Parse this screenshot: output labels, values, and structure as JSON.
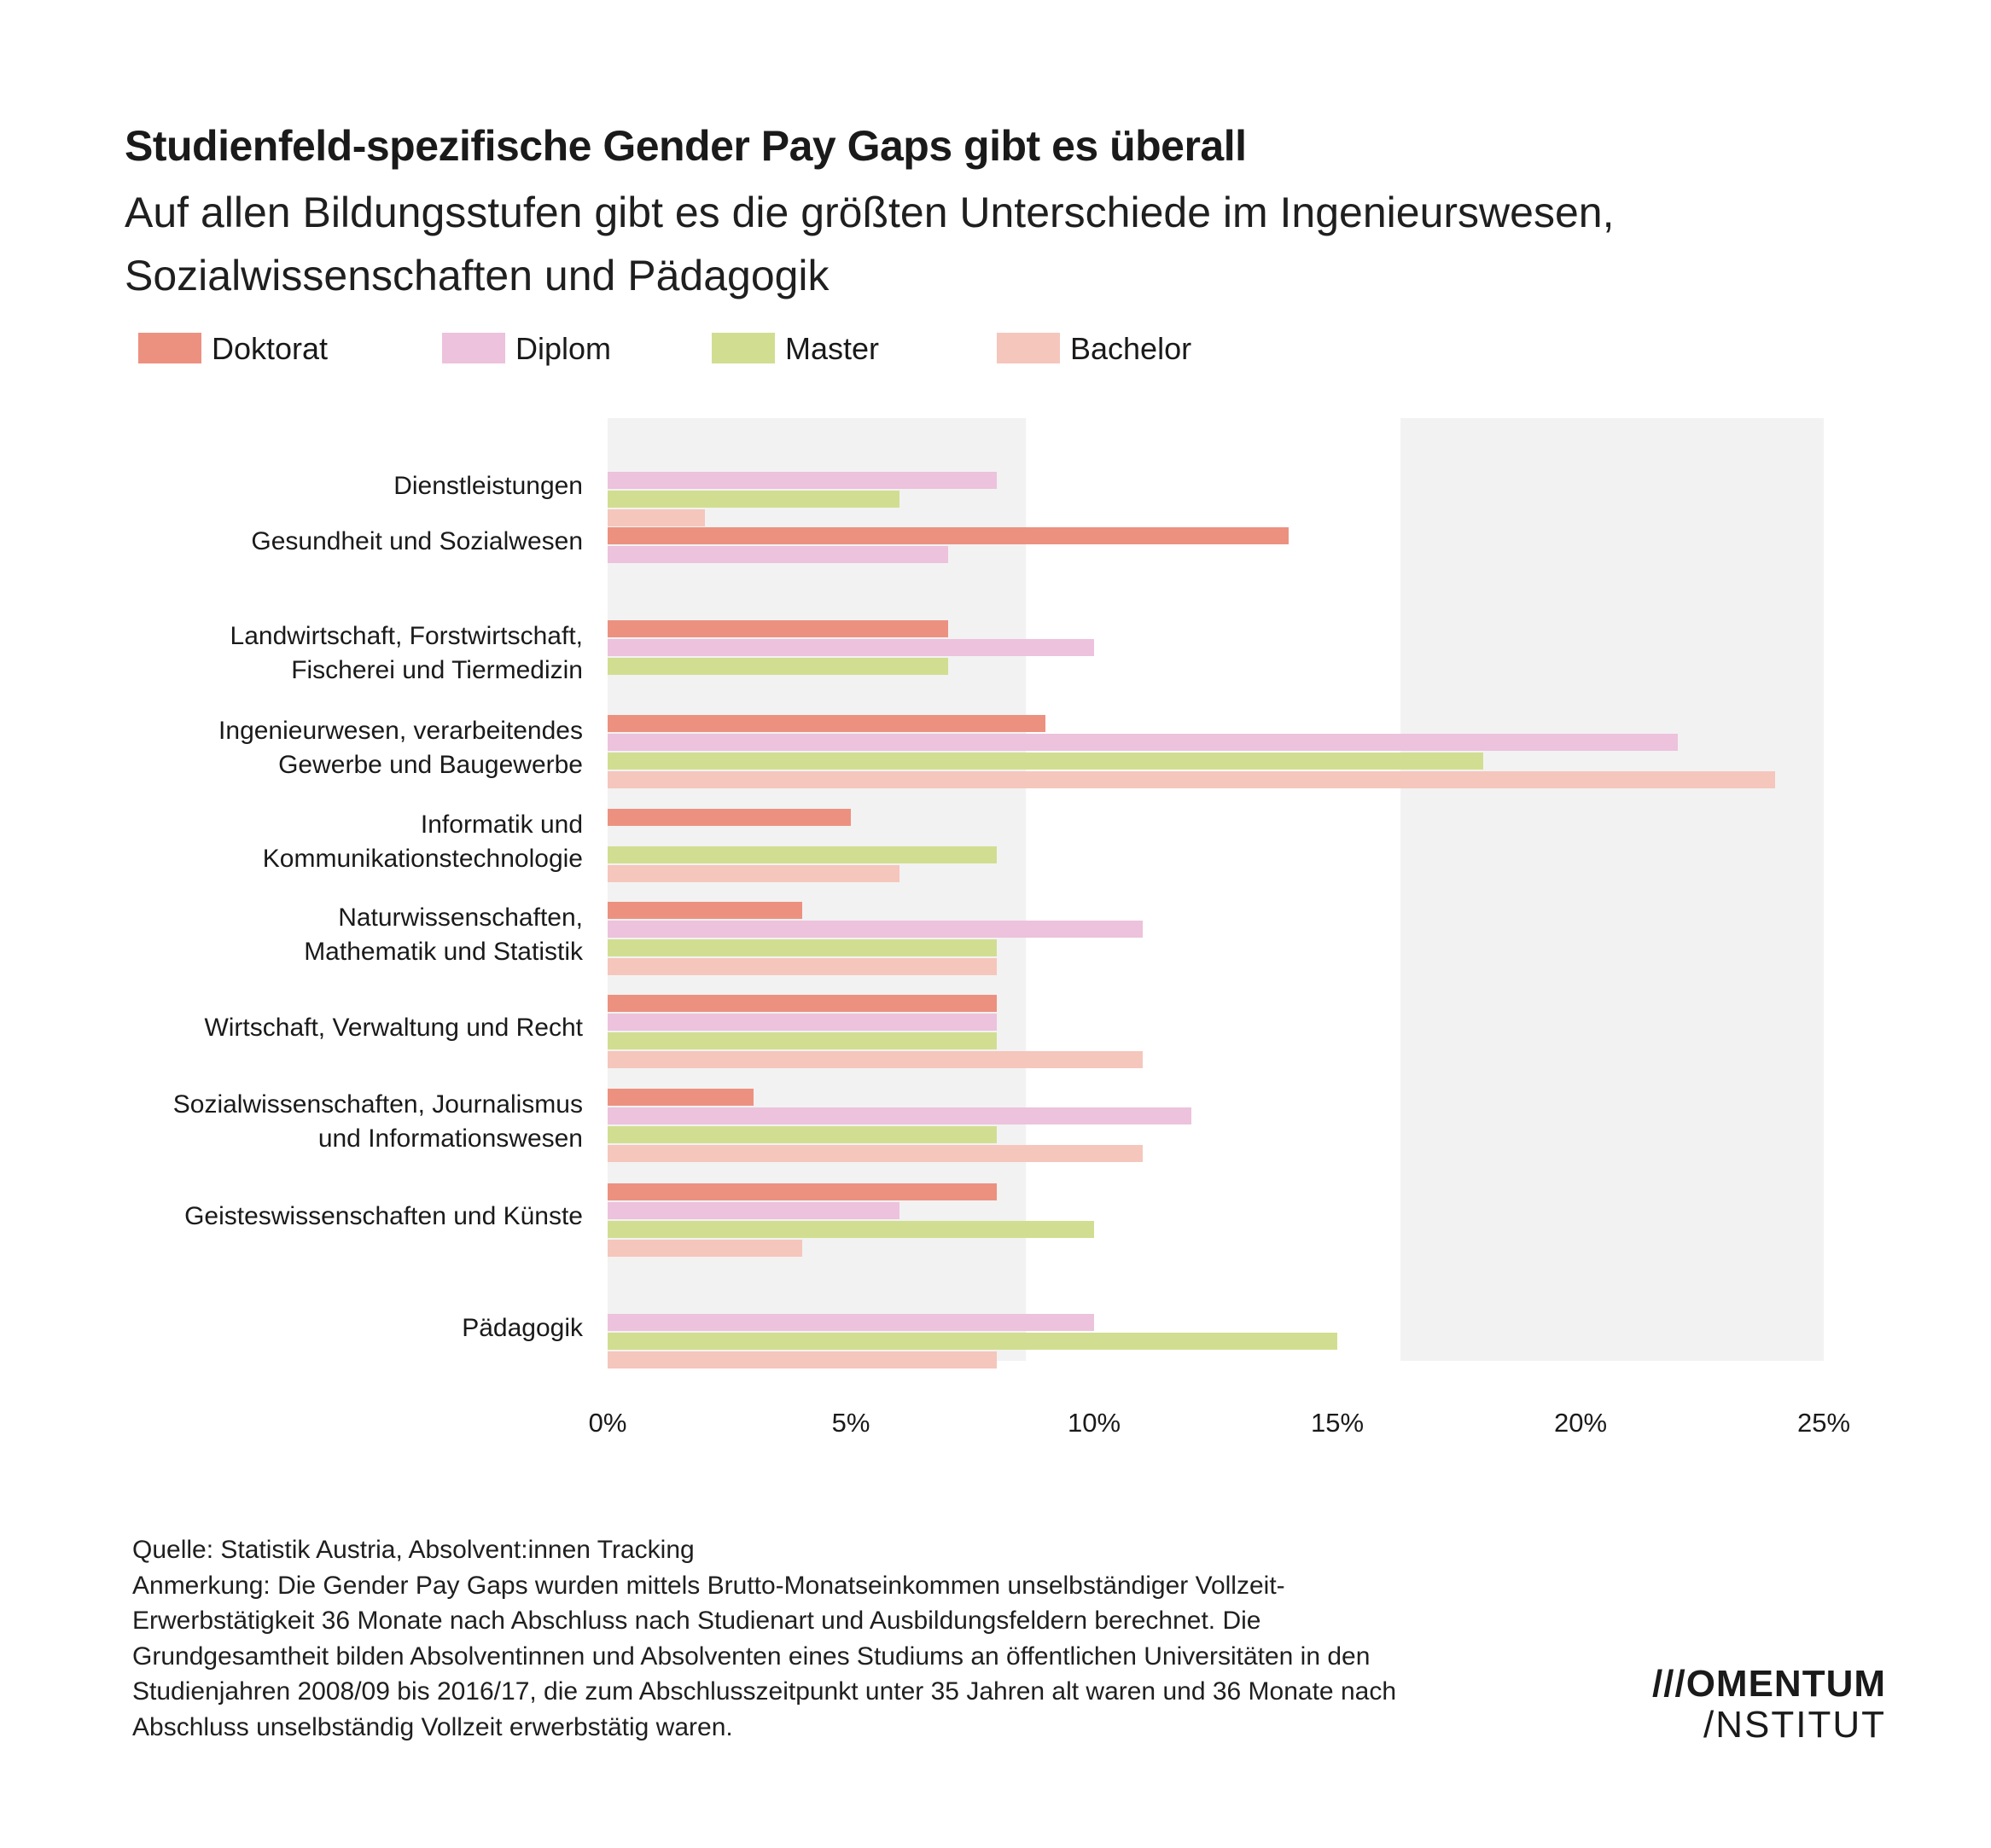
{
  "title": "Studienfeld-spezifische Gender Pay Gaps gibt es überall",
  "subtitle": "Auf allen Bildungsstufen gibt es die größten Unterschiede im Ingenieurswesen, Sozialwissenschaften und Pädagogik",
  "colors": {
    "Doktorat": "#ec9180",
    "Diplom": "#ecc2dc",
    "Master": "#d1de91",
    "Bachelor": "#f5c6bc",
    "band": "#f2f2f2"
  },
  "chart_data": {
    "type": "bar",
    "orientation": "horizontal",
    "categories": [
      [
        "Dienstleistungen"
      ],
      [
        "Gesundheit und Sozialwesen"
      ],
      [
        "Landwirtschaft, Forstwirtschaft,",
        "Fischerei und Tiermedizin"
      ],
      [
        "Ingenieurwesen, verarbeitendes",
        "Gewerbe und Baugewerbe"
      ],
      [
        "Informatik und",
        "Kommunikationstechnologie"
      ],
      [
        "Naturwissenschaften,",
        "Mathematik und Statistik"
      ],
      [
        "Wirtschaft, Verwaltung und Recht"
      ],
      [
        "Sozialwissenschaften, Journalismus",
        "und Informationswesen"
      ],
      [
        "Geisteswissenschaften und Künste"
      ],
      [
        "Pädagogik"
      ]
    ],
    "series": [
      {
        "name": "Doktorat",
        "values": [
          null,
          14,
          7,
          9,
          5,
          4,
          8,
          3,
          8,
          null
        ]
      },
      {
        "name": "Diplom",
        "values": [
          8,
          7,
          10,
          22,
          null,
          11,
          8,
          12,
          6,
          10
        ]
      },
      {
        "name": "Master",
        "values": [
          6,
          null,
          7,
          18,
          8,
          8,
          8,
          8,
          10,
          15
        ]
      },
      {
        "name": "Bachelor",
        "values": [
          2,
          null,
          null,
          24,
          6,
          8,
          11,
          11,
          4,
          8
        ]
      }
    ],
    "xlim": [
      0,
      25
    ],
    "xticks": [
      "0%",
      "5%",
      "10%",
      "15%",
      "20%",
      "25%"
    ],
    "background_bands": [
      [
        0,
        8.6
      ],
      [
        16.3,
        25
      ]
    ],
    "grid": false,
    "legend_position": "top-left"
  },
  "footnote": {
    "source": "Quelle: Statistik Austria, Absolvent:innen Tracking",
    "note": "Anmerkung: Die Gender Pay Gaps wurden mittels Brutto-Monatseinkommen unselbständiger Vollzeit-Erwerbstätigkeit 36 Monate nach Abschluss nach Studienart und Ausbildungsfeldern berechnet.  Die Grundgesamtheit bilden Absolventinnen und Absolventen eines Studiums an öffentlichen Universitäten in den Studienjahren 2008/09 bis 2016/17, die zum Abschlusszeitpunkt unter 35 Jahren alt waren und 36 Monate nach Abschluss unselbständig Vollzeit erwerbstätig waren."
  },
  "logo": {
    "line1": "///OMENTUM",
    "line2": "/NSTITUT"
  }
}
